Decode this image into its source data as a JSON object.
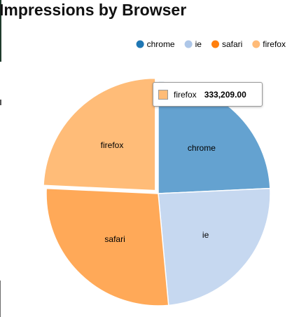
{
  "chart_data": {
    "type": "pie",
    "title": "Impressions by Browser",
    "series": [
      {
        "name": "chrome",
        "value": 333209,
        "color": "#64a2d0",
        "legend_color": "#1f77b4"
      },
      {
        "name": "ie",
        "value": 333209,
        "color": "#c6d8f0",
        "legend_color": "#aec7e8"
      },
      {
        "name": "safari",
        "value": 373500,
        "color": "#ffa958",
        "legend_color": "#ff7f0e"
      },
      {
        "name": "firefox",
        "value": 333209,
        "color": "#ffbc78",
        "legend_color": "#ffbb78"
      }
    ],
    "legend": {
      "position": "top-right"
    },
    "highlighted": "firefox",
    "tooltip": {
      "key": "firefox",
      "value": "333,209.00",
      "color": "#ffbc78"
    }
  }
}
